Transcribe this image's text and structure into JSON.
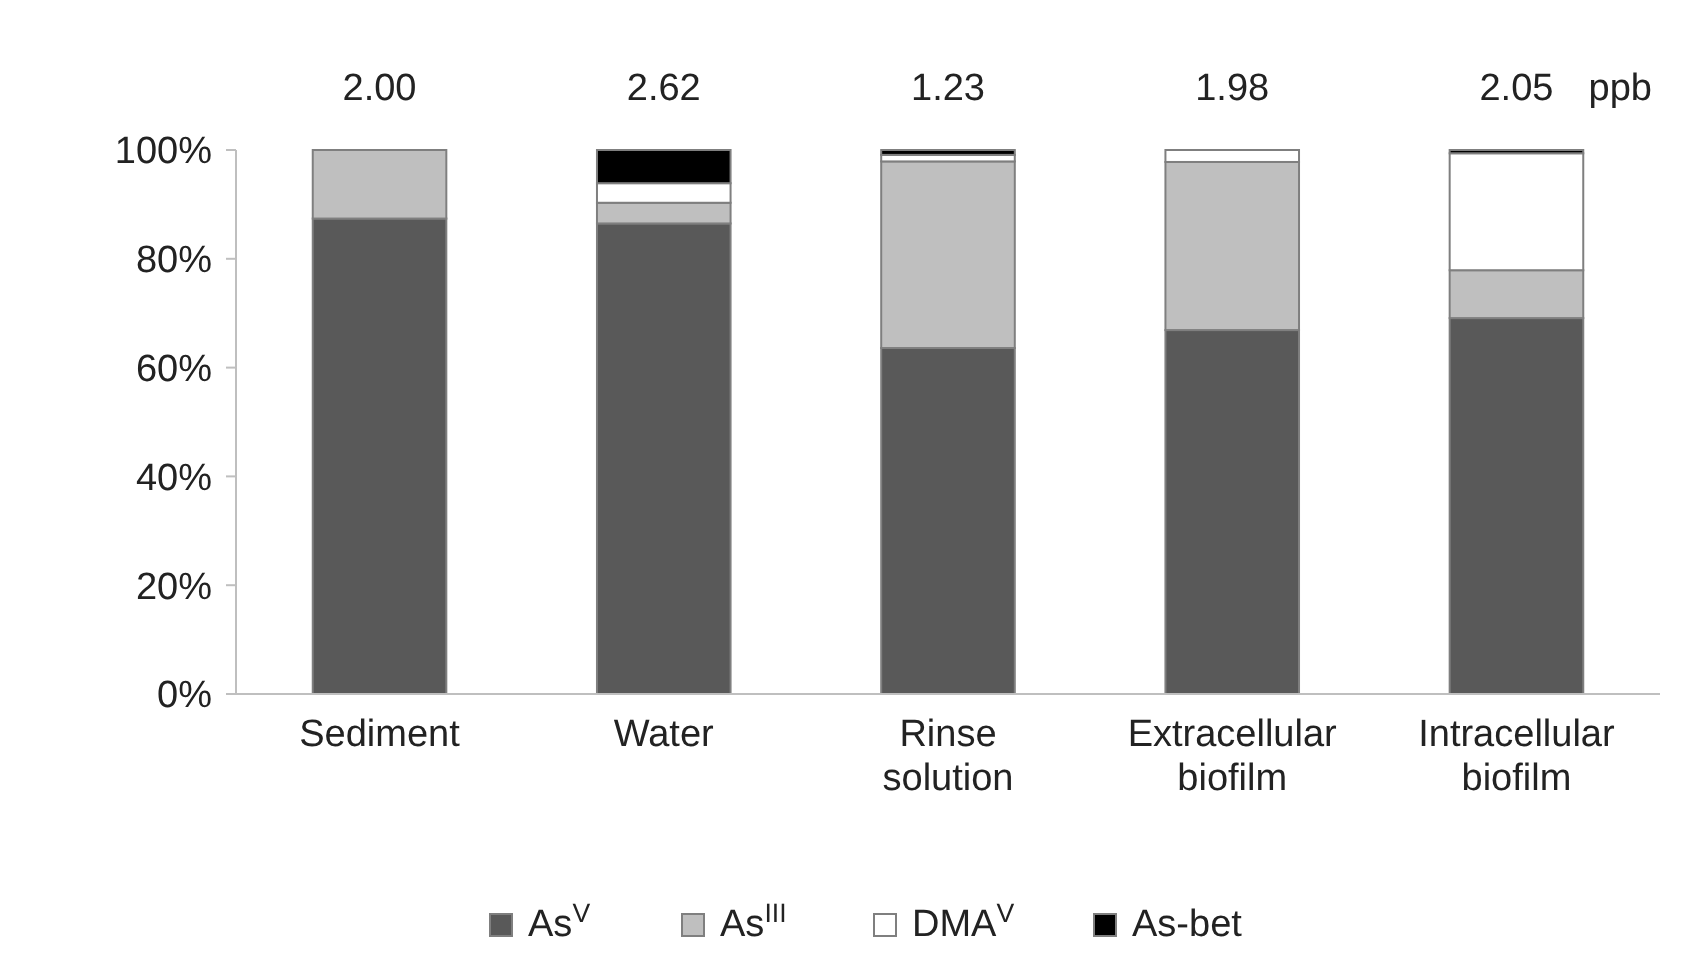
{
  "chart_data": {
    "type": "bar",
    "stacked": true,
    "categories": [
      "Sediment",
      "Water",
      "Rinse solution",
      "Extracellular biofilm",
      "Intracellular biofilm"
    ],
    "series": [
      {
        "name": "As$^{V}$",
        "color": "#595959",
        "values": [
          87.4,
          86.5,
          63.6,
          66.9,
          69.1
        ]
      },
      {
        "name": "As$^{III}$",
        "color": "#bfbfbf",
        "values": [
          12.6,
          3.8,
          34.3,
          30.9,
          8.8
        ]
      },
      {
        "name": "DMA$^{V}$",
        "color": "#ffffff",
        "values": [
          0,
          3.6,
          1.2,
          2.2,
          21.5
        ]
      },
      {
        "name": "As-bet",
        "color": "#000000",
        "values": [
          0,
          6.1,
          0.9,
          0,
          0.6
        ]
      }
    ],
    "ylim": [
      0,
      100
    ],
    "yticks": [
      {
        "value": 0,
        "label": "0%"
      },
      {
        "value": 20,
        "label": "20%"
      },
      {
        "value": 40,
        "label": "40%"
      },
      {
        "value": 60,
        "label": "60%"
      },
      {
        "value": 80,
        "label": "80%"
      },
      {
        "value": 100,
        "label": "100%"
      }
    ],
    "legend": "bottom",
    "annotations": [
      "2.00",
      "2.62",
      "1.23",
      "1.98",
      "2.05",
      "ppb"
    ]
  }
}
